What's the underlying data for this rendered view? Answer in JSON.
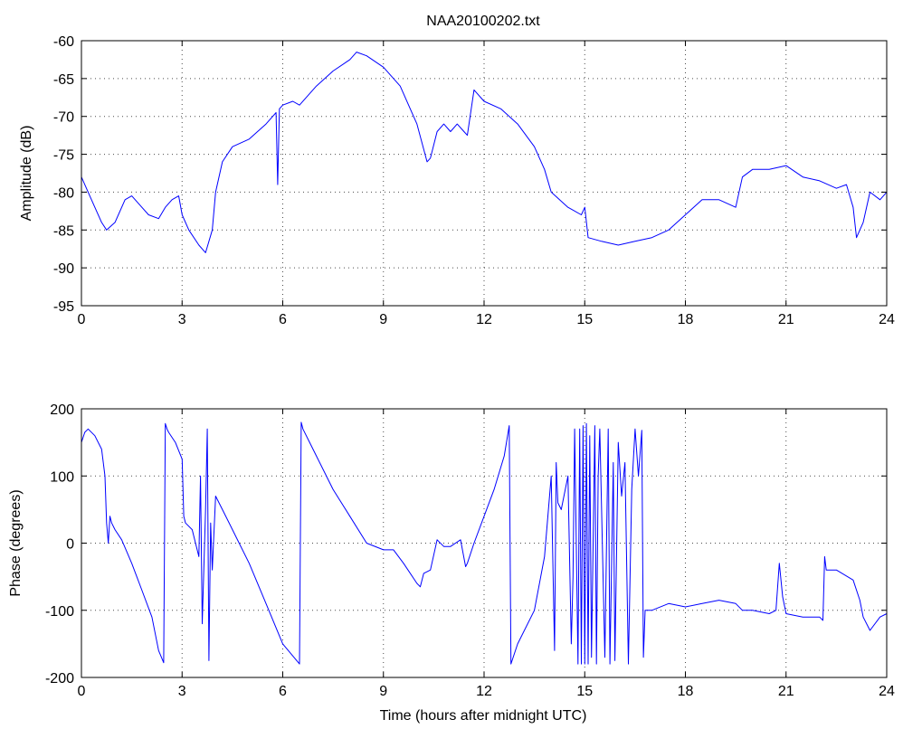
{
  "window": {
    "background": "#ffffff"
  },
  "chart_data": [
    {
      "type": "line",
      "title": "NAA20100202.txt",
      "xlabel": "",
      "ylabel": "Amplitude (dB)",
      "xlim": [
        0,
        24
      ],
      "ylim": [
        -95,
        -60
      ],
      "xticks": [
        0,
        3,
        6,
        9,
        12,
        15,
        18,
        21,
        24
      ],
      "yticks": [
        -95,
        -90,
        -85,
        -80,
        -75,
        -70,
        -65,
        -60
      ],
      "grid": true,
      "color": "#0000ff",
      "series": [
        {
          "x": [
            0,
            0.3,
            0.6,
            0.75,
            1.0,
            1.3,
            1.5,
            1.8,
            2.0,
            2.3,
            2.5,
            2.7,
            2.9,
            3.0,
            3.2,
            3.5,
            3.7,
            3.9,
            4.0,
            4.2,
            4.5,
            5.0,
            5.5,
            5.8,
            5.85,
            5.9,
            6.0,
            6.3,
            6.5,
            7.0,
            7.5,
            8.0,
            8.2,
            8.5,
            9.0,
            9.5,
            10.0,
            10.3,
            10.4,
            10.6,
            10.8,
            11.0,
            11.2,
            11.4,
            11.5,
            11.7,
            12.0,
            12.5,
            13.0,
            13.5,
            13.8,
            14.0,
            14.5,
            14.9,
            15.0,
            15.1,
            15.5,
            16.0,
            16.5,
            17.0,
            17.5,
            18.0,
            18.5,
            19.0,
            19.5,
            19.7,
            20.0,
            20.5,
            21.0,
            21.5,
            22.0,
            22.5,
            22.8,
            23.0,
            23.1,
            23.3,
            23.5,
            23.8,
            24.0
          ],
          "y": [
            -78,
            -81,
            -84,
            -85,
            -84,
            -81,
            -80.5,
            -82,
            -83,
            -83.5,
            -82,
            -81,
            -80.5,
            -83,
            -85,
            -87,
            -88,
            -85,
            -80,
            -76,
            -74,
            -73,
            -71,
            -69.5,
            -79,
            -69,
            -68.5,
            -68,
            -68.5,
            -66,
            -64,
            -62.5,
            -61.5,
            -62,
            -63.5,
            -66,
            -71,
            -76,
            -75.5,
            -72,
            -71,
            -72,
            -71,
            -72,
            -72.5,
            -66.5,
            -68,
            -69,
            -71,
            -74,
            -77,
            -80,
            -82,
            -83,
            -82,
            -86,
            -86.5,
            -87,
            -86.5,
            -86,
            -85,
            -83,
            -81,
            -81,
            -82,
            -78,
            -77,
            -77,
            -76.5,
            -78,
            -78.5,
            -79.5,
            -79,
            -82,
            -86,
            -84,
            -80,
            -81,
            -80
          ]
        }
      ]
    },
    {
      "type": "line",
      "title": "",
      "xlabel": "Time (hours after midnight UTC)",
      "ylabel": "Phase (degrees)",
      "xlim": [
        0,
        24
      ],
      "ylim": [
        -200,
        200
      ],
      "xticks": [
        0,
        3,
        6,
        9,
        12,
        15,
        18,
        21,
        24
      ],
      "yticks": [
        -200,
        -100,
        0,
        100,
        200
      ],
      "grid": true,
      "color": "#0000ff",
      "series": [
        {
          "x": [
            0,
            0.1,
            0.2,
            0.4,
            0.6,
            0.7,
            0.75,
            0.8,
            0.85,
            0.9,
            1.0,
            1.2,
            1.5,
            1.8,
            2.1,
            2.3,
            2.45,
            2.5,
            2.55,
            2.6,
            2.8,
            3.0,
            3.05,
            3.1,
            3.3,
            3.4,
            3.5,
            3.55,
            3.6,
            3.7,
            3.75,
            3.8,
            3.85,
            3.9,
            4.0,
            4.2,
            4.5,
            5.0,
            5.5,
            6.0,
            6.5,
            6.55,
            6.6,
            6.8,
            7.0,
            7.5,
            8.0,
            8.5,
            9.0,
            9.3,
            9.6,
            10.0,
            10.1,
            10.2,
            10.4,
            10.6,
            10.8,
            11.0,
            11.3,
            11.45,
            11.5,
            11.7,
            12.0,
            12.3,
            12.6,
            12.75,
            12.8,
            13.0,
            13.5,
            13.8,
            14.0,
            14.1,
            14.15,
            14.2,
            14.3,
            14.5,
            14.6,
            14.65,
            14.7,
            14.8,
            14.85,
            14.9,
            14.95,
            15.0,
            15.05,
            15.1,
            15.15,
            15.2,
            15.3,
            15.35,
            15.4,
            15.45,
            15.6,
            15.7,
            15.75,
            15.85,
            15.9,
            16.0,
            16.1,
            16.2,
            16.3,
            16.4,
            16.5,
            16.6,
            16.7,
            16.75,
            16.8,
            17.0,
            17.5,
            18.0,
            18.5,
            19.0,
            19.5,
            19.7,
            20.0,
            20.5,
            20.7,
            20.8,
            20.9,
            21.0,
            21.5,
            22.0,
            22.1,
            22.15,
            22.2,
            22.5,
            23.0,
            23.2,
            23.3,
            23.5,
            23.8,
            24.0
          ],
          "y": [
            150,
            165,
            170,
            160,
            140,
            100,
            30,
            0,
            40,
            30,
            20,
            5,
            -30,
            -70,
            -110,
            -160,
            -178,
            178,
            170,
            165,
            150,
            125,
            40,
            30,
            20,
            0,
            -20,
            100,
            -120,
            50,
            170,
            -175,
            30,
            -40,
            70,
            50,
            20,
            -30,
            -90,
            -150,
            -180,
            180,
            170,
            150,
            130,
            80,
            40,
            0,
            -10,
            -10,
            -30,
            -60,
            -65,
            -45,
            -40,
            5,
            -5,
            -5,
            5,
            -35,
            -30,
            0,
            40,
            80,
            130,
            175,
            -180,
            -150,
            -100,
            -20,
            100,
            -160,
            120,
            60,
            50,
            100,
            -150,
            -50,
            170,
            -180,
            170,
            -180,
            175,
            -180,
            178,
            -180,
            160,
            -170,
            175,
            -180,
            100,
            170,
            -170,
            170,
            -180,
            120,
            -175,
            150,
            70,
            120,
            -180,
            80,
            170,
            100,
            168,
            -170,
            -100,
            -100,
            -90,
            -95,
            -90,
            -85,
            -90,
            -100,
            -100,
            -105,
            -100,
            -30,
            -80,
            -105,
            -110,
            -110,
            -115,
            -20,
            -40,
            -40,
            -55,
            -85,
            -110,
            -130,
            -110,
            -105
          ]
        }
      ]
    }
  ]
}
